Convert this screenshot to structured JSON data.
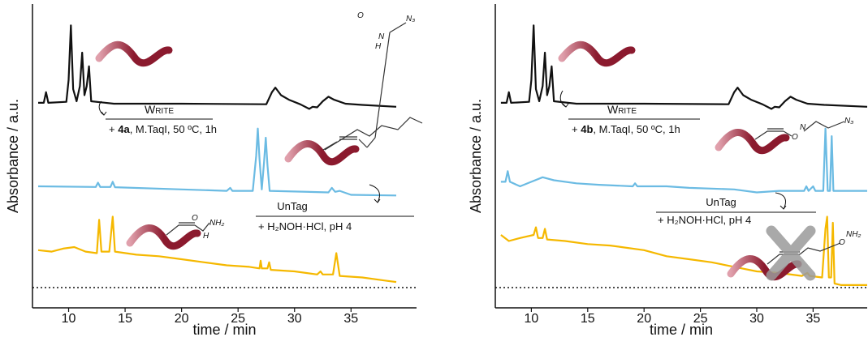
{
  "chart_data": [
    {
      "type": "line",
      "xlabel": "time / min",
      "ylabel": "Absorbance / a.u.",
      "xlim": [
        6.8,
        40.8
      ],
      "xticks": [
        10,
        15,
        20,
        25,
        30,
        35
      ],
      "ylim": [
        0,
        10
      ],
      "series": [
        {
          "color": "#111111",
          "x": [
            7.3,
            7.8,
            8.0,
            8.2,
            9.8,
            10.0,
            10.2,
            10.4,
            10.7,
            11.0,
            11.2,
            11.4,
            11.6,
            11.8,
            12.0,
            14,
            20,
            27.5,
            28.0,
            28.3,
            28.8,
            29.5,
            30.5,
            31.3,
            31.6,
            32.0,
            32.5,
            33.0,
            33.5,
            34.5,
            36,
            39
          ],
          "values": [
            6.75,
            6.75,
            7.1,
            6.75,
            6.78,
            7.5,
            9.3,
            7.2,
            6.8,
            7.3,
            8.4,
            7.0,
            7.3,
            7.95,
            6.8,
            6.72,
            6.72,
            6.7,
            7.1,
            7.25,
            7.0,
            6.85,
            6.7,
            6.55,
            6.62,
            6.6,
            6.8,
            6.95,
            6.85,
            6.72,
            6.68,
            6.62
          ]
        },
        {
          "color": "#6bbbe3",
          "x": [
            7.3,
            12.4,
            12.6,
            12.8,
            13.7,
            13.9,
            14.1,
            20,
            24,
            24.3,
            24.5,
            26.3,
            26.6,
            26.75,
            26.9,
            27.1,
            27.3,
            27.45,
            27.6,
            27.8,
            33.0,
            33.3,
            33.6,
            34,
            35,
            39
          ],
          "values": [
            4.0,
            3.98,
            4.12,
            3.98,
            3.98,
            4.15,
            3.97,
            3.9,
            3.85,
            3.95,
            3.85,
            3.85,
            5.0,
            5.9,
            4.9,
            3.9,
            4.8,
            5.6,
            4.7,
            3.85,
            3.8,
            3.95,
            3.82,
            3.85,
            3.72,
            3.7
          ]
        },
        {
          "color": "#f5b800",
          "x": [
            7.3,
            8.5,
            9.5,
            10.5,
            11.5,
            12.5,
            12.7,
            12.9,
            13.6,
            13.9,
            14.1,
            16,
            18,
            20,
            22,
            24,
            26,
            26.9,
            27.0,
            27.1,
            27.6,
            27.75,
            27.9,
            30,
            32,
            32.3,
            32.5,
            33.4,
            33.7,
            34,
            36,
            38,
            39
          ],
          "values": [
            1.9,
            1.85,
            1.95,
            2.0,
            1.85,
            1.8,
            2.9,
            1.85,
            1.85,
            3.0,
            1.85,
            1.75,
            1.7,
            1.6,
            1.5,
            1.4,
            1.35,
            1.3,
            1.55,
            1.3,
            1.3,
            1.5,
            1.25,
            1.2,
            1.1,
            1.2,
            1.1,
            1.1,
            1.8,
            1.05,
            1.0,
            0.9,
            0.85
          ]
        }
      ],
      "annotations": {
        "write": "Write",
        "reagent": [
          "+ ",
          "4a",
          ", M.TaqI, 50 ºC, 1h"
        ],
        "untag": "UnTag",
        "reagent2": "+  H₂NOH·HCl, pH 4",
        "structure_top": [
          "O",
          "N",
          "H",
          "N₃"
        ],
        "structure_bottom": [
          "O",
          "NH₂",
          "H"
        ]
      }
    },
    {
      "type": "line",
      "xlabel": "time / min",
      "ylabel": "Absorbance / a.u.",
      "xlim": [
        6.8,
        39.8
      ],
      "xticks": [
        10,
        15,
        20,
        25,
        30,
        35
      ],
      "ylim": [
        0,
        10
      ],
      "series": [
        {
          "color": "#111111",
          "x": [
            7.3,
            7.8,
            8.0,
            8.2,
            9.8,
            10.0,
            10.2,
            10.4,
            10.7,
            11.0,
            11.2,
            11.4,
            11.6,
            11.8,
            12.0,
            14,
            20,
            27.5,
            28.0,
            28.3,
            28.8,
            29.5,
            30.5,
            31.3,
            31.6,
            32.0,
            32.5,
            33.0,
            33.5,
            34.5,
            36,
            39.8
          ],
          "values": [
            6.75,
            6.75,
            7.1,
            6.75,
            6.78,
            7.5,
            9.3,
            7.2,
            6.8,
            7.3,
            8.4,
            7.0,
            7.3,
            7.95,
            6.8,
            6.72,
            6.72,
            6.7,
            7.1,
            7.25,
            7.0,
            6.85,
            6.7,
            6.55,
            6.62,
            6.6,
            6.8,
            6.95,
            6.85,
            6.72,
            6.68,
            6.62
          ]
        },
        {
          "color": "#6bbbe3",
          "x": [
            7.3,
            7.7,
            7.9,
            8.1,
            9,
            10,
            11,
            12,
            14,
            16,
            19,
            19.2,
            19.4,
            22,
            24,
            28,
            30,
            32,
            34.2,
            34.4,
            34.6,
            35.0,
            35.2,
            35.9,
            36.1,
            36.3,
            36.5,
            36.65,
            36.8,
            39.8
          ],
          "values": [
            4.15,
            4.15,
            4.5,
            4.15,
            4.0,
            4.15,
            4.3,
            4.2,
            4.1,
            4.05,
            4.0,
            4.1,
            4.0,
            4.0,
            3.95,
            3.9,
            3.8,
            3.85,
            3.85,
            4.0,
            3.85,
            4.0,
            3.85,
            3.85,
            5.9,
            3.85,
            3.85,
            5.65,
            3.85,
            3.85
          ]
        },
        {
          "color": "#f5b800",
          "x": [
            7.3,
            8,
            9,
            10.2,
            10.4,
            10.6,
            11.0,
            11.2,
            11.4,
            13,
            15,
            17,
            18,
            20,
            22,
            24,
            26,
            28,
            30,
            32,
            34,
            34.5,
            34.7,
            35.8,
            36.1,
            36.25,
            36.4,
            36.6,
            36.75,
            36.9,
            37.5,
            39.8
          ],
          "values": [
            2.4,
            2.2,
            2.3,
            2.4,
            2.65,
            2.3,
            2.3,
            2.6,
            2.25,
            2.2,
            2.1,
            2.05,
            2.0,
            1.9,
            1.7,
            1.6,
            1.5,
            1.35,
            1.2,
            1.15,
            1.05,
            1.15,
            1.05,
            1.0,
            2.6,
            3.0,
            1.0,
            1.0,
            2.8,
            0.8,
            0.75,
            0.75
          ]
        }
      ],
      "annotations": {
        "write": "Write",
        "reagent": [
          "+ ",
          "4b",
          ", M.TaqI, 50 ºC, 1h"
        ],
        "untag": "UnTag",
        "reagent2": "+  H₂NOH·HCl, pH 4",
        "structure_top": [
          "O",
          "N",
          "N₃"
        ],
        "structure_bottom": [
          "O",
          "NH₂"
        ]
      }
    }
  ]
}
